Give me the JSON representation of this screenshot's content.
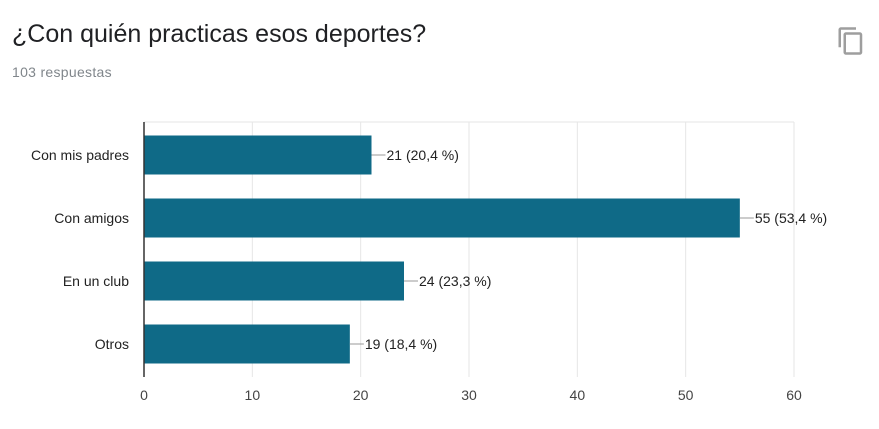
{
  "header": {
    "title": "¿Con quién practicas esos deportes?",
    "responses": "103 respuestas",
    "copy_icon": "copy-icon"
  },
  "colors": {
    "bar": "#0f6a87",
    "grid": "#e6e6e6",
    "axis": "#333333",
    "leader": "#999999"
  },
  "chart_data": {
    "type": "bar",
    "orientation": "horizontal",
    "categories": [
      "Con mis padres",
      "Con amigos",
      "En un club",
      "Otros"
    ],
    "values": [
      21,
      55,
      24,
      19
    ],
    "value_labels": [
      "21 (20,4 %)",
      "55 (53,4 %)",
      "24 (23,3 %)",
      "19 (18,4 %)"
    ],
    "xlim": [
      0,
      60
    ],
    "xticks": [
      "0",
      "10",
      "20",
      "30",
      "40",
      "50",
      "60"
    ],
    "grid": true,
    "legend": false
  }
}
